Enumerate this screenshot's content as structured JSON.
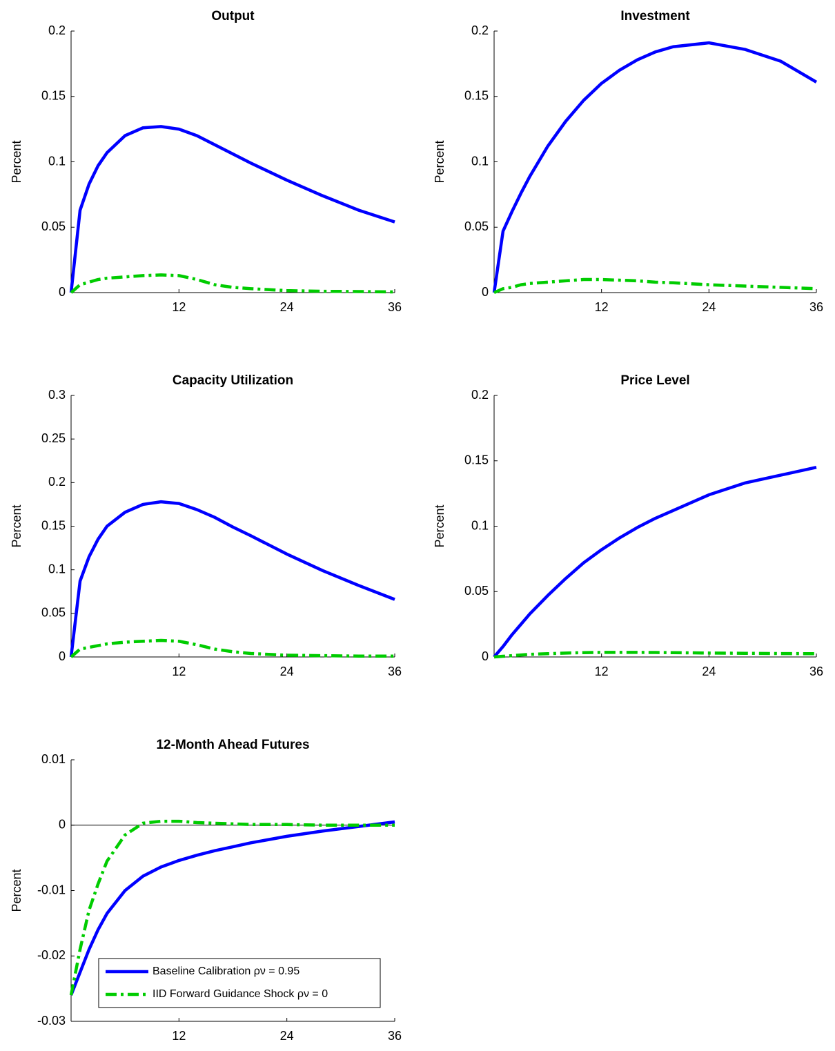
{
  "chart_data": [
    {
      "type": "line",
      "title": "Output",
      "y_label": "Percent",
      "x": [
        0,
        1,
        2,
        3,
        4,
        6,
        8,
        10,
        12,
        14,
        16,
        18,
        20,
        24,
        28,
        32,
        36
      ],
      "xlim": [
        0,
        36
      ],
      "xticks": [
        12,
        24,
        36
      ],
      "ylim": [
        0,
        0.2
      ],
      "yticks": [
        0,
        0.05,
        0.1,
        0.15,
        0.2
      ],
      "series": [
        {
          "name": "Baseline Calibration ρν = 0.95",
          "color": "#0000ff",
          "linestyle": "solid",
          "values": [
            0,
            0.063,
            0.083,
            0.097,
            0.107,
            0.12,
            0.126,
            0.127,
            0.125,
            0.12,
            0.113,
            0.106,
            0.099,
            0.086,
            0.074,
            0.063,
            0.054
          ]
        },
        {
          "name": "IID Forward Guidance Shock ρν = 0",
          "color": "#00cc00",
          "linestyle": "dashdot",
          "values": [
            0,
            0.006,
            0.008,
            0.01,
            0.011,
            0.012,
            0.013,
            0.0135,
            0.013,
            0.01,
            0.006,
            0.004,
            0.003,
            0.0015,
            0.001,
            0.0008,
            0.0005
          ]
        }
      ]
    },
    {
      "type": "line",
      "title": "Investment",
      "y_label": "Percent",
      "x": [
        0,
        1,
        2,
        3,
        4,
        6,
        8,
        10,
        12,
        14,
        16,
        18,
        20,
        24,
        28,
        32,
        36
      ],
      "xlim": [
        0,
        36
      ],
      "xticks": [
        12,
        24,
        36
      ],
      "ylim": [
        0,
        0.2
      ],
      "yticks": [
        0,
        0.05,
        0.1,
        0.15,
        0.2
      ],
      "series": [
        {
          "name": "Baseline Calibration ρν = 0.95",
          "color": "#0000ff",
          "linestyle": "solid",
          "values": [
            0,
            0.047,
            0.062,
            0.076,
            0.089,
            0.112,
            0.131,
            0.147,
            0.16,
            0.17,
            0.178,
            0.184,
            0.188,
            0.191,
            0.186,
            0.177,
            0.161
          ]
        },
        {
          "name": "IID Forward Guidance Shock ρν = 0",
          "color": "#00cc00",
          "linestyle": "dashdot",
          "values": [
            0,
            0.003,
            0.004,
            0.006,
            0.007,
            0.008,
            0.009,
            0.01,
            0.01,
            0.0095,
            0.009,
            0.008,
            0.0075,
            0.006,
            0.005,
            0.004,
            0.003
          ]
        }
      ]
    },
    {
      "type": "line",
      "title": "Capacity Utilization",
      "y_label": "Percent",
      "x": [
        0,
        1,
        2,
        3,
        4,
        6,
        8,
        10,
        12,
        14,
        16,
        18,
        20,
        24,
        28,
        32,
        36
      ],
      "xlim": [
        0,
        36
      ],
      "xticks": [
        12,
        24,
        36
      ],
      "ylim": [
        0,
        0.3
      ],
      "yticks": [
        0,
        0.05,
        0.1,
        0.15,
        0.2,
        0.25,
        0.3
      ],
      "series": [
        {
          "name": "Baseline Calibration ρν = 0.95",
          "color": "#0000ff",
          "linestyle": "solid",
          "values": [
            0,
            0.087,
            0.115,
            0.135,
            0.15,
            0.166,
            0.175,
            0.178,
            0.176,
            0.169,
            0.16,
            0.149,
            0.139,
            0.118,
            0.099,
            0.082,
            0.066
          ]
        },
        {
          "name": "IID Forward Guidance Shock ρν = 0",
          "color": "#00cc00",
          "linestyle": "dashdot",
          "values": [
            0,
            0.009,
            0.011,
            0.013,
            0.015,
            0.017,
            0.018,
            0.019,
            0.018,
            0.014,
            0.009,
            0.006,
            0.004,
            0.002,
            0.0015,
            0.001,
            0.001
          ]
        }
      ]
    },
    {
      "type": "line",
      "title": "Price Level",
      "y_label": "Percent",
      "x": [
        0,
        1,
        2,
        3,
        4,
        6,
        8,
        10,
        12,
        14,
        16,
        18,
        20,
        24,
        28,
        32,
        36
      ],
      "xlim": [
        0,
        36
      ],
      "xticks": [
        12,
        24,
        36
      ],
      "ylim": [
        0,
        0.2
      ],
      "yticks": [
        0,
        0.05,
        0.1,
        0.15,
        0.2
      ],
      "series": [
        {
          "name": "Baseline Calibration ρν = 0.95",
          "color": "#0000ff",
          "linestyle": "solid",
          "values": [
            0,
            0.008,
            0.017,
            0.025,
            0.033,
            0.047,
            0.06,
            0.072,
            0.082,
            0.091,
            0.099,
            0.106,
            0.112,
            0.124,
            0.133,
            0.139,
            0.145
          ]
        },
        {
          "name": "IID Forward Guidance Shock ρν = 0",
          "color": "#00cc00",
          "linestyle": "dashdot",
          "values": [
            0,
            0.0005,
            0.001,
            0.0015,
            0.002,
            0.0025,
            0.003,
            0.0033,
            0.0035,
            0.0035,
            0.0035,
            0.0034,
            0.0033,
            0.003,
            0.0028,
            0.0026,
            0.0025
          ]
        }
      ]
    },
    {
      "type": "line",
      "title": "12-Month Ahead Futures",
      "y_label": "Percent",
      "x": [
        0,
        1,
        2,
        3,
        4,
        6,
        8,
        10,
        12,
        14,
        16,
        18,
        20,
        24,
        28,
        32,
        36
      ],
      "xlim": [
        0,
        36
      ],
      "xticks": [
        12,
        24,
        36
      ],
      "ylim": [
        -0.03,
        0.01
      ],
      "yticks": [
        -0.03,
        -0.02,
        -0.01,
        0,
        0.01
      ],
      "zero_line": true,
      "legend": "lower left",
      "series": [
        {
          "name": "Baseline Calibration ρν = 0.95",
          "color": "#0000ff",
          "linestyle": "solid",
          "values": [
            -0.026,
            -0.0225,
            -0.019,
            -0.016,
            -0.0135,
            -0.01,
            -0.0078,
            -0.0064,
            -0.0054,
            -0.0046,
            -0.0039,
            -0.0033,
            -0.0027,
            -0.0017,
            -0.0009,
            -0.0002,
            0.0005
          ]
        },
        {
          "name": "IID Forward Guidance Shock ρν = 0",
          "color": "#00cc00",
          "linestyle": "dashdot",
          "values": [
            -0.026,
            -0.019,
            -0.013,
            -0.009,
            -0.0055,
            -0.0015,
            0.0003,
            0.0006,
            0.0006,
            0.0004,
            0.0003,
            0.0002,
            0.0001,
            0.0001,
            0,
            0,
            0
          ]
        }
      ]
    }
  ]
}
